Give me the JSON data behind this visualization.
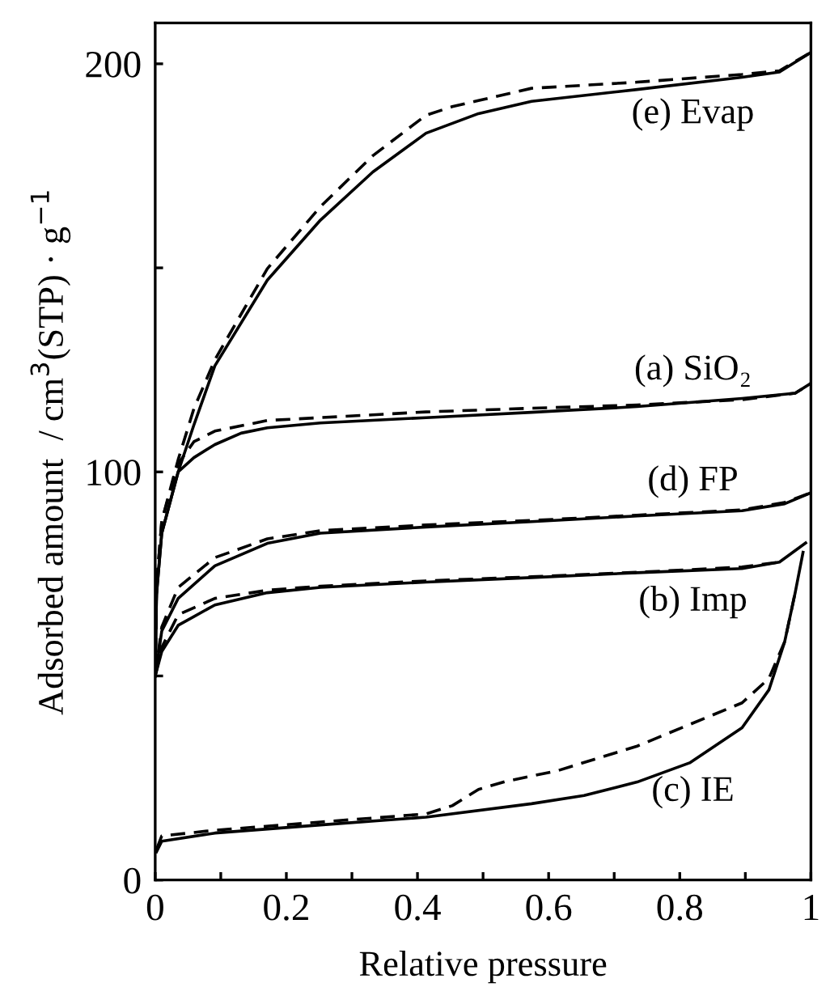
{
  "chart_data": {
    "type": "line",
    "xlabel": "Relative pressure",
    "ylabel": "Adsorbed amount  / cm$^{3}$(STP) · g$^{−1}$",
    "xlim": [
      0,
      1
    ],
    "ylim": [
      0,
      210
    ],
    "xticks": [
      0,
      {
        "value": 0.1,
        "label": null
      },
      0.2,
      {
        "value": 0.3,
        "label": null
      },
      0.4,
      {
        "value": 0.5,
        "label": null
      },
      0.6,
      {
        "value": 0.7,
        "label": null
      },
      0.8,
      {
        "value": 0.9,
        "label": null
      },
      1
    ],
    "yticks": [
      0,
      {
        "value": 50,
        "label": null
      },
      100,
      {
        "value": 150,
        "label": null
      },
      200
    ],
    "grid": false,
    "legend": false,
    "marker": "none",
    "series": [
      {
        "name": "(e) Evap",
        "color": "#000000",
        "line_style": "solid",
        "x": [
          0,
          0.002,
          0.01,
          0.035,
          0.059,
          0.091,
          0.171,
          0.252,
          0.332,
          0.413,
          0.493,
          0.574,
          0.735,
          0.895,
          0.952,
          1.0
        ],
        "values": [
          50,
          70,
          85,
          100,
          111.5,
          126,
          147,
          161.7,
          173.5,
          183,
          187.8,
          190.8,
          193.7,
          196.7,
          198,
          202.8
        ]
      },
      {
        "color": "#000000",
        "line_style": "dashed",
        "x": [
          0,
          0.002,
          0.01,
          0.035,
          0.059,
          0.091,
          0.171,
          0.252,
          0.332,
          0.413,
          0.453,
          0.493,
          0.574,
          0.735,
          0.895,
          0.952,
          1.0
        ],
        "values": [
          50,
          72,
          88,
          103,
          115.5,
          127.5,
          149.8,
          165,
          177.5,
          187.4,
          189.5,
          191,
          194,
          195.5,
          197.4,
          198.3,
          202.8
        ]
      },
      {
        "name": "(a) SiO₂",
        "color": "#000000",
        "line_style": "solid",
        "x": [
          0,
          0.002,
          0.01,
          0.035,
          0.059,
          0.091,
          0.131,
          0.171,
          0.252,
          0.413,
          0.574,
          0.735,
          0.895,
          0.976,
          1.0
        ],
        "values": [
          50,
          70,
          85,
          100,
          103.5,
          106.7,
          109.5,
          110.8,
          112,
          113.3,
          114.6,
          116,
          118,
          119.3,
          121.7
        ]
      },
      {
        "color": "#000000",
        "line_style": "dashed",
        "x": [
          0,
          0.002,
          0.01,
          0.035,
          0.059,
          0.091,
          0.171,
          0.252,
          0.413,
          0.574,
          0.735,
          0.895,
          0.976,
          1.0
        ],
        "values": [
          50,
          72,
          88,
          102,
          107.4,
          110,
          112.6,
          113.3,
          114.7,
          115.6,
          116.4,
          117.7,
          119.3,
          121.7
        ]
      },
      {
        "name": "(d) FP",
        "color": "#000000",
        "line_style": "solid",
        "x": [
          0,
          0.01,
          0.035,
          0.091,
          0.171,
          0.252,
          0.413,
          0.574,
          0.735,
          0.895,
          0.96,
          1.0
        ],
        "values": [
          50,
          61,
          69,
          77,
          82.5,
          85,
          86.5,
          87.8,
          89.2,
          90.5,
          92.2,
          94.9
        ]
      },
      {
        "color": "#000000",
        "line_style": "dashed",
        "x": [
          0,
          0.01,
          0.035,
          0.091,
          0.171,
          0.252,
          0.413,
          0.574,
          0.735,
          0.895,
          0.96,
          1.0
        ],
        "values": [
          50,
          62,
          71.7,
          79,
          83.6,
          85.6,
          87,
          88.1,
          89.4,
          90.7,
          92.5,
          94.9
        ]
      },
      {
        "name": "(b) Imp",
        "color": "#000000",
        "line_style": "solid",
        "x": [
          0,
          0.01,
          0.035,
          0.091,
          0.171,
          0.252,
          0.413,
          0.574,
          0.735,
          0.895,
          0.952,
          0.992
        ],
        "values": [
          50,
          56,
          62.4,
          67.4,
          70.4,
          71.7,
          73,
          74.1,
          75.3,
          76.3,
          77.9,
          82.6
        ]
      },
      {
        "color": "#000000",
        "line_style": "dashed",
        "x": [
          0,
          0.01,
          0.035,
          0.091,
          0.171,
          0.252,
          0.413,
          0.574,
          0.735,
          0.895,
          0.952
        ],
        "values": [
          50,
          57,
          65,
          69,
          71,
          72,
          73.3,
          74.3,
          75.4,
          76.7,
          77.9
        ]
      },
      {
        "name": "(c) IE",
        "color": "#000000",
        "line_style": "solid",
        "x": [
          0.002,
          0.01,
          0.091,
          0.252,
          0.413,
          0.574,
          0.654,
          0.735,
          0.815,
          0.895,
          0.936,
          0.96,
          0.976,
          0.988
        ],
        "values": [
          6.9,
          9.5,
          11.5,
          13.5,
          15.4,
          18.7,
          20.7,
          24,
          28.7,
          37.3,
          46.6,
          58.4,
          70.4,
          80.3
        ]
      },
      {
        "color": "#000000",
        "line_style": "dashed",
        "x": [
          0.002,
          0.01,
          0.091,
          0.252,
          0.413,
          0.453,
          0.493,
          0.533,
          0.614,
          0.735,
          0.815,
          0.895,
          0.936,
          0.96,
          0.976
        ],
        "values": [
          7.5,
          10.8,
          12.2,
          14.2,
          16.2,
          18.2,
          22.2,
          24.1,
          26.8,
          32.8,
          38.1,
          43.4,
          49.4,
          58.4,
          70.4
        ]
      }
    ]
  }
}
